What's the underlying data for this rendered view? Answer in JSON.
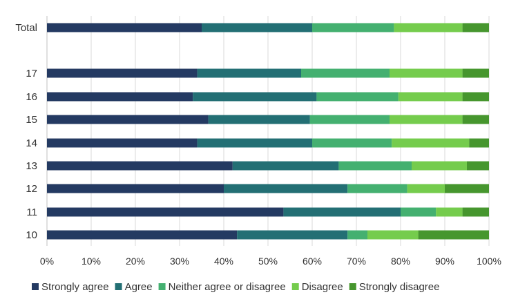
{
  "chart_data": {
    "type": "bar",
    "orientation": "horizontal",
    "stacked": true,
    "percent": true,
    "categories": [
      "Total",
      "",
      "17",
      "16",
      "15",
      "14",
      "13",
      "12",
      "11",
      "10"
    ],
    "series": [
      {
        "name": "Strongly agree",
        "values": [
          35,
          null,
          34,
          33,
          36.5,
          34,
          42,
          40,
          53.5,
          43
        ]
      },
      {
        "name": "Agree",
        "values": [
          25,
          null,
          23.5,
          28,
          23,
          26,
          24,
          28,
          26.5,
          25
        ]
      },
      {
        "name": "Neither agree or disagree",
        "values": [
          18.5,
          null,
          20,
          18.5,
          18,
          18,
          16.5,
          13.5,
          8,
          4.5
        ]
      },
      {
        "name": "Disagree",
        "values": [
          15.5,
          null,
          16.5,
          14.5,
          16.5,
          17.5,
          12.5,
          8.5,
          6,
          11.5
        ]
      },
      {
        "name": "Strongly disagree",
        "values": [
          6,
          null,
          6,
          6,
          6,
          4.5,
          5,
          10,
          6,
          16
        ]
      }
    ],
    "colors": [
      "#243a62",
      "#236f74",
      "#44b070",
      "#75cc4d",
      "#46962e"
    ],
    "x_ticks": [
      "0%",
      "10%",
      "20%",
      "30%",
      "40%",
      "50%",
      "60%",
      "70%",
      "80%",
      "90%",
      "100%"
    ],
    "xlim": [
      0,
      100
    ],
    "grid": "vertical",
    "legend": "bottom"
  }
}
